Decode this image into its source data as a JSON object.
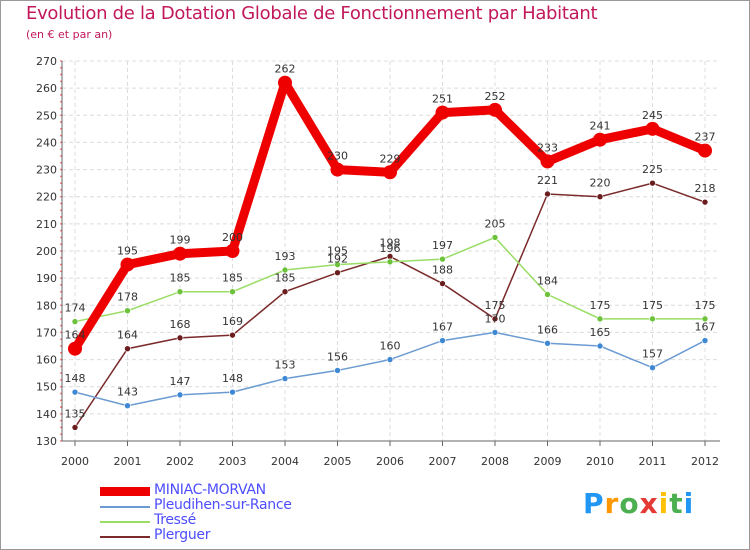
{
  "header": {
    "title": "Evolution de la Dotation Globale de Fonctionnement par Habitant",
    "subtitle": "(en € et par an)"
  },
  "logo": {
    "letters": [
      "P",
      "r",
      "o",
      "x",
      "i",
      "t",
      "i"
    ],
    "colors": [
      "#2196f3",
      "#ff9800",
      "#4caf50",
      "#e53935",
      "#ffc107",
      "#4caf50",
      "#2196f3"
    ]
  },
  "chart_data": {
    "type": "line",
    "title": "Evolution de la Dotation Globale de Fonctionnement par Habitant",
    "subtitle": "(en € et par an)",
    "x": [
      "2000",
      "2001",
      "2002",
      "2003",
      "2004",
      "2005",
      "2006",
      "2007",
      "2008",
      "2009",
      "2010",
      "2011",
      "2012"
    ],
    "ylim": [
      130,
      270
    ],
    "yticks": [
      130,
      140,
      150,
      160,
      170,
      180,
      190,
      200,
      210,
      220,
      230,
      240,
      250,
      260,
      270
    ],
    "grid": true,
    "legend_position": "bottom-left",
    "series": [
      {
        "name": "MINIAC-MORVAN",
        "color": "#ee0000",
        "bold": true,
        "values": [
          164,
          195,
          199,
          200,
          262,
          230,
          229,
          251,
          252,
          233,
          241,
          245,
          237
        ],
        "labels": [
          "164",
          "195",
          "199",
          "200",
          "262",
          "230",
          "229",
          "251",
          "252",
          "233",
          "241",
          "245",
          "237"
        ]
      },
      {
        "name": "Pleudihen-sur-Rance",
        "color": "#6b9bd1",
        "dot": "#3f88d4",
        "values": [
          148,
          143,
          147,
          148,
          153,
          156,
          160,
          167,
          170,
          166,
          165,
          157,
          167
        ],
        "labels": [
          "148",
          "143",
          "147",
          "148",
          "153",
          "156",
          "160",
          "167",
          "170",
          "166",
          "165",
          "157",
          "167"
        ]
      },
      {
        "name": "Tressé",
        "color": "#99dd66",
        "dot": "#6cc23a",
        "values": [
          174,
          178,
          185,
          185,
          193,
          195,
          196,
          197,
          205,
          184,
          175,
          175,
          175
        ],
        "labels": [
          "174",
          "178",
          "185",
          "185",
          "193",
          "195",
          "196",
          "197",
          "205",
          "184",
          "175",
          "175",
          "175"
        ]
      },
      {
        "name": "Plerguer",
        "color": "#7a2a2a",
        "dot": "#6b1d1d",
        "values": [
          135,
          164,
          168,
          169,
          185,
          192,
          198,
          188,
          175,
          221,
          220,
          225,
          218
        ],
        "labels": [
          "135",
          "164",
          "168",
          "169",
          "185",
          "192",
          "198",
          "188",
          "175",
          "221",
          "220",
          "225",
          "218"
        ]
      }
    ]
  }
}
